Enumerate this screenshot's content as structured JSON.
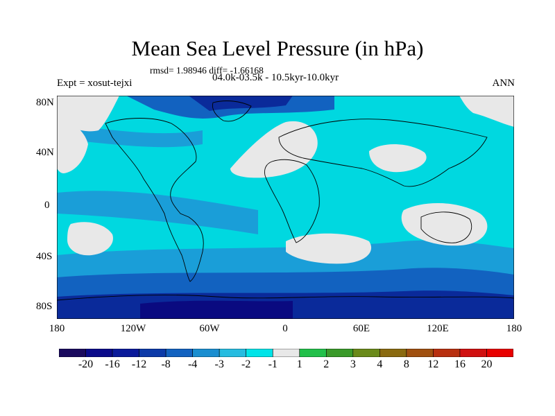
{
  "title": "Mean Sea Level Pressure (in hPa)",
  "stats": "rmsd= 1.98946 diff= -1.66168",
  "period": "04.0k-03.5k - 10.5kyr-10.0kyr",
  "experiment": "Expt = xosut-tejxi",
  "season": "ANN",
  "lat_labels": [
    "80N",
    "40N",
    "0",
    "40S",
    "80S"
  ],
  "lon_labels": [
    "180",
    "120W",
    "60W",
    "0",
    "60E",
    "120E",
    "180"
  ],
  "colorbar": {
    "labels": [
      "-20",
      "-16",
      "-12",
      "-8",
      "-4",
      "-3",
      "-2",
      "-1",
      "1",
      "2",
      "3",
      "4",
      "8",
      "12",
      "16",
      "20"
    ],
    "colors": [
      "#1a0a5e",
      "#0a0a8a",
      "#0a1a9a",
      "#0c3aa8",
      "#1262c0",
      "#1a8ed0",
      "#26bce0",
      "#00e4e8",
      "#e8e8e8",
      "#22c04a",
      "#3a9a2a",
      "#6a8a1a",
      "#8a6a10",
      "#a05010",
      "#b83010",
      "#d01010",
      "#e80000"
    ]
  },
  "map_colors": {
    "neutral": "#e8e8e8",
    "cyan": "#00d8e0",
    "light_blue": "#1a9ed8",
    "mid_blue": "#1262c0",
    "dark_blue": "#0a2a9a",
    "darkest": "#0a0a80"
  }
}
